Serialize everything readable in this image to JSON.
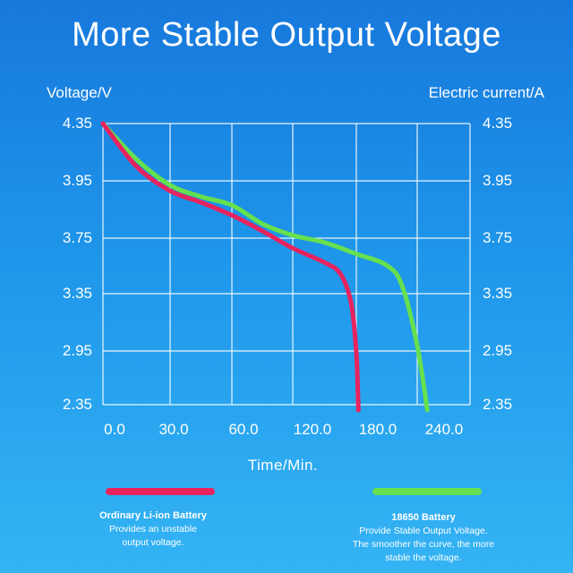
{
  "colors": {
    "ordinary": "#e8235e",
    "cell18650": "#66e04e",
    "grid": "#ffffff"
  },
  "chart_data": {
    "type": "line",
    "title": "More Stable Output Voltage",
    "ylabel": "Voltage/V",
    "y2label": "Electric current/A",
    "xlabel": "Time/Min.",
    "x_ticks": [
      "0.0",
      "30.0",
      "60.0",
      "120.0",
      "180.0",
      "240.0"
    ],
    "y_ticks": [
      "4.35",
      "3.95",
      "3.75",
      "3.35",
      "2.95",
      "2.35"
    ],
    "y2_ticks": [
      "4.35",
      "3.95",
      "3.75",
      "3.35",
      "2.95",
      "2.35"
    ],
    "grid": true,
    "series": [
      {
        "name": "Ordinary Li-ion Battery",
        "points": [
          [
            0,
            4.35
          ],
          [
            15,
            4.05
          ],
          [
            30,
            3.88
          ],
          [
            45,
            3.8
          ],
          [
            60,
            3.71
          ],
          [
            90,
            3.6
          ],
          [
            120,
            3.48
          ],
          [
            150,
            3.38
          ],
          [
            165,
            3.3
          ],
          [
            175,
            3.1
          ],
          [
            180,
            2.75
          ],
          [
            182,
            2.35
          ]
        ]
      },
      {
        "name": "18650 Battery",
        "points": [
          [
            0,
            4.35
          ],
          [
            15,
            4.1
          ],
          [
            30,
            3.92
          ],
          [
            45,
            3.84
          ],
          [
            60,
            3.78
          ],
          [
            90,
            3.65
          ],
          [
            120,
            3.57
          ],
          [
            150,
            3.52
          ],
          [
            180,
            3.44
          ],
          [
            210,
            3.36
          ],
          [
            225,
            3.22
          ],
          [
            240,
            2.8
          ],
          [
            250,
            2.35
          ]
        ]
      }
    ]
  },
  "legend": {
    "ordinary": {
      "title": "Ordinary Li-ion Battery",
      "desc": [
        "Provides an unstable",
        "output voltage."
      ]
    },
    "cell18650": {
      "title": "18650 Battery",
      "desc": [
        "Provide Stable Output Voltage.",
        "The smoother the curve, the more",
        "stable the voltage."
      ]
    }
  }
}
